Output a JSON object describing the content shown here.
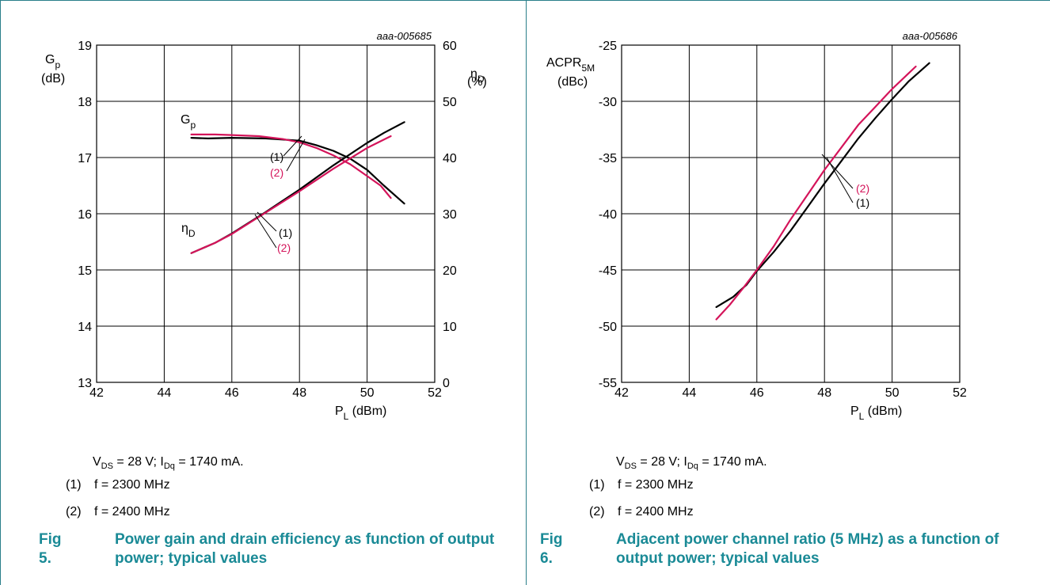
{
  "figures": [
    {
      "id": "fig5",
      "chart_id": "aaa-005685",
      "fig_num": "Fig 5.",
      "caption": "Power gain and drain efficiency as function of output power; typical values",
      "conditions": {
        "vds": "V",
        "vds_sub": "DS",
        "vds_rest": " = 28 V; I",
        "idq_sub": "Dq",
        "idq_rest": " = 1740 mA."
      },
      "notes": [
        {
          "key": "(1)",
          "text": "f = 2300 MHz"
        },
        {
          "key": "(2)",
          "text": "f = 2400 MHz"
        }
      ],
      "y_label_main": "G",
      "y_label_sub": "p",
      "y_unit": "(dB)",
      "y2_label_main": "η",
      "y2_label_sub": "D",
      "y2_unit": "(%)",
      "x_label_main": "P",
      "x_label_sub": "L",
      "x_unit": " (dBm)",
      "curve_labels": {
        "gp_main": "G",
        "gp_sub": "p",
        "eta_main": "η",
        "eta_sub": "D",
        "gp_1": "(1)",
        "gp_2": "(2)",
        "eta_1": "(1)",
        "eta_2": "(2)"
      }
    },
    {
      "id": "fig6",
      "chart_id": "aaa-005686",
      "fig_num": "Fig 6.",
      "caption": "Adjacent power channel ratio (5 MHz) as a function of output power; typical values",
      "conditions": {
        "vds": "V",
        "vds_sub": "DS",
        "vds_rest": " = 28 V; I",
        "idq_sub": "Dq",
        "idq_rest": " = 1740 mA."
      },
      "notes": [
        {
          "key": "(1)",
          "text": "f = 2300 MHz"
        },
        {
          "key": "(2)",
          "text": "f = 2400 MHz"
        }
      ],
      "y_label_main": "ACPR",
      "y_label_sub": "5M",
      "y_unit": "(dBc)",
      "x_label_main": "P",
      "x_label_sub": "L",
      "x_unit": " (dBm)",
      "curve_labels": {
        "c2": "(2)",
        "c1": "(1)"
      }
    }
  ],
  "colors": {
    "f2300": "#000000",
    "f2400": "#d4145a",
    "accent": "#1a8a96"
  },
  "chart_data": [
    {
      "type": "line",
      "xlabel": "PL (dBm)",
      "ylabel": "Gp (dB)",
      "y2label": "ηD (%)",
      "xlim": [
        42,
        52
      ],
      "ylim": [
        13,
        19
      ],
      "y2lim": [
        0,
        60
      ],
      "xticks": [
        42,
        44,
        46,
        48,
        50,
        52
      ],
      "yticks": [
        13,
        14,
        15,
        16,
        17,
        18,
        19
      ],
      "y2ticks": [
        0,
        10,
        20,
        30,
        40,
        50,
        60
      ],
      "grid": true,
      "series": [
        {
          "name": "Gp (1) f = 2300 MHz",
          "axis": "left",
          "color": "#000000",
          "x": [
            44.8,
            45.3,
            46.0,
            47.0,
            48.0,
            48.5,
            49.0,
            49.5,
            50.0,
            50.5,
            51.1
          ],
          "y": [
            17.35,
            17.34,
            17.35,
            17.34,
            17.3,
            17.22,
            17.12,
            16.98,
            16.78,
            16.5,
            16.18
          ]
        },
        {
          "name": "Gp (2) f = 2400 MHz",
          "axis": "left",
          "color": "#d4145a",
          "x": [
            44.8,
            45.5,
            46.0,
            46.8,
            47.5,
            48.0,
            48.5,
            49.0,
            49.5,
            50.0,
            50.4,
            50.7
          ],
          "y": [
            17.41,
            17.41,
            17.4,
            17.38,
            17.33,
            17.27,
            17.17,
            17.04,
            16.88,
            16.67,
            16.5,
            16.28
          ]
        },
        {
          "name": "ηD (1) f = 2300 MHz",
          "axis": "right",
          "color": "#000000",
          "x": [
            44.8,
            45.5,
            46.0,
            47.0,
            48.0,
            49.0,
            50.0,
            50.5,
            51.1
          ],
          "y": [
            23.0,
            24.8,
            26.5,
            30.3,
            34.3,
            38.6,
            42.6,
            44.4,
            46.3
          ]
        },
        {
          "name": "ηD (2) f = 2400 MHz",
          "axis": "right",
          "color": "#d4145a",
          "x": [
            44.8,
            45.5,
            46.0,
            47.0,
            48.0,
            49.0,
            50.0,
            50.7
          ],
          "y": [
            23.0,
            24.8,
            26.4,
            30.2,
            34.0,
            38.0,
            41.7,
            43.8
          ]
        }
      ]
    },
    {
      "type": "line",
      "xlabel": "PL (dBm)",
      "ylabel": "ACPR5M (dBc)",
      "xlim": [
        42,
        52
      ],
      "ylim": [
        -55,
        -25
      ],
      "xticks": [
        42,
        44,
        46,
        48,
        50,
        52
      ],
      "yticks": [
        -55,
        -50,
        -45,
        -40,
        -35,
        -30,
        -25
      ],
      "grid": true,
      "series": [
        {
          "name": "(1) f = 2300 MHz",
          "color": "#000000",
          "x": [
            44.8,
            45.3,
            45.7,
            46.0,
            46.5,
            47.0,
            47.5,
            48.0,
            48.5,
            49.0,
            49.5,
            50.0,
            50.5,
            51.1
          ],
          "y": [
            -48.3,
            -47.4,
            -46.3,
            -45.1,
            -43.4,
            -41.5,
            -39.4,
            -37.3,
            -35.3,
            -33.3,
            -31.5,
            -29.8,
            -28.2,
            -26.6
          ]
        },
        {
          "name": "(2) f = 2400 MHz",
          "color": "#d4145a",
          "x": [
            44.8,
            45.2,
            45.6,
            46.0,
            46.5,
            47.0,
            47.5,
            48.0,
            48.5,
            49.0,
            49.5,
            50.0,
            50.7
          ],
          "y": [
            -49.4,
            -48.1,
            -46.6,
            -45.0,
            -42.9,
            -40.5,
            -38.3,
            -36.1,
            -34.1,
            -32.1,
            -30.5,
            -28.9,
            -26.9
          ]
        }
      ]
    }
  ]
}
